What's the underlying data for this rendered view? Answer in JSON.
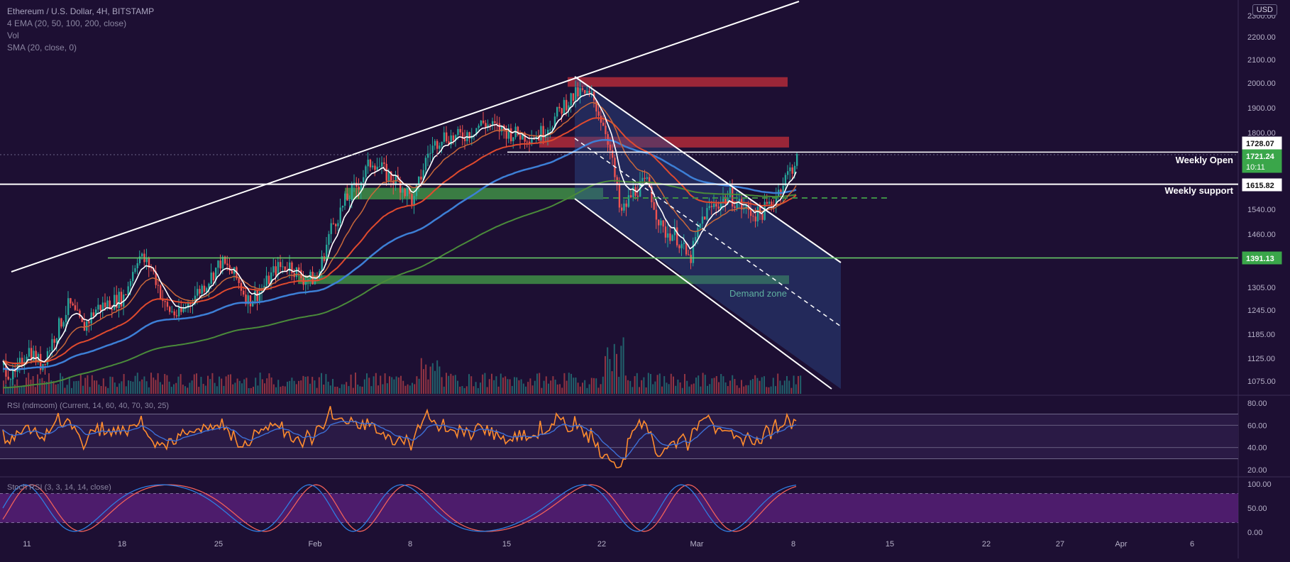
{
  "header": {
    "symbol_line": "Ethereum / U.S. Dollar, 4H, BITSTAMP",
    "ema_line": "4 EMA (20, 50, 100, 200, close)",
    "vol_line": "Vol",
    "sma_line": "SMA (20, close, 0)"
  },
  "currency_badge": "USD",
  "colors": {
    "background": "#1d0f33",
    "up_candle": "#26a69a",
    "down_candle": "#ef5350",
    "channel_line": "#ffffff",
    "ema20": "#ffffff",
    "ema50": "#e04a2e",
    "ema100": "#3d7fd6",
    "ema200": "#4a8a3a",
    "resistance_zone": "#b02a3a",
    "support_zone": "#3f8f46",
    "channel_fill": "#2d4a8a",
    "rsi_line": "#ff8c2e",
    "stoch_k": "#2f7de0",
    "stoch_d": "#f0605a",
    "stoch_band": "#5a1f7a"
  },
  "chart_data": [
    {
      "type": "candlestick",
      "title": "Ethereum / U.S. Dollar, 4H, BITSTAMP",
      "x_ticks": [
        "11",
        "18",
        "25",
        "Feb",
        "8",
        "15",
        "22",
        "Mar",
        "8",
        "15",
        "22",
        "27",
        "Apr",
        "6"
      ],
      "y_ticks": [
        1075.0,
        1125.0,
        1185.0,
        1245.0,
        1305.0,
        1390.0,
        1460.0,
        1540.0,
        1615.0,
        1700.0,
        1800.0,
        1900.0,
        2000.0,
        2100.0,
        2200.0,
        2300.0
      ],
      "price_labels": [
        {
          "value": "1728.07",
          "style": "outline"
        },
        {
          "value": "1721.24",
          "sub": "10:11",
          "style": "green"
        },
        {
          "value": "1615.82",
          "style": "outline"
        },
        {
          "value": "1391.13",
          "style": "green"
        }
      ],
      "horizontal_levels": [
        {
          "label": "Weekly Open",
          "value": 1728.07
        },
        {
          "label": "Weekly support",
          "value": 1615.82
        },
        {
          "label": "",
          "value": 1391.13
        }
      ],
      "zones": [
        {
          "label": "",
          "from": 1985,
          "to": 2025,
          "kind": "resistance"
        },
        {
          "label": "",
          "from": 1745,
          "to": 1785,
          "kind": "resistance"
        },
        {
          "label": "",
          "from": 1570,
          "to": 1605,
          "kind": "support"
        },
        {
          "label": "Demand zone",
          "from": 1315,
          "to": 1340,
          "kind": "support"
        }
      ],
      "annotations": [
        "Weekly Open",
        "Weekly support",
        "Demand zone"
      ],
      "close_path": [
        [
          "Jan 8",
          1250
        ],
        [
          "Jan 9",
          1120
        ],
        [
          "Jan 10",
          1080
        ],
        [
          "Jan 11",
          1150
        ],
        [
          "Jan 12",
          1110
        ],
        [
          "Jan 13",
          1185
        ],
        [
          "Jan 14",
          1260
        ],
        [
          "Jan 15",
          1200
        ],
        [
          "Jan 16",
          1250
        ],
        [
          "Jan 18",
          1280
        ],
        [
          "Jan 19",
          1400
        ],
        [
          "Jan 20",
          1360
        ],
        [
          "Jan 21",
          1250
        ],
        [
          "Jan 22",
          1230
        ],
        [
          "Jan 23",
          1280
        ],
        [
          "Jan 24",
          1320
        ],
        [
          "Jan 25",
          1380
        ],
        [
          "Jan 26",
          1340
        ],
        [
          "Jan 27",
          1270
        ],
        [
          "Jan 28",
          1300
        ],
        [
          "Jan 29",
          1360
        ],
        [
          "Jan 30",
          1370
        ],
        [
          "Jan 31",
          1330
        ],
        [
          "Feb 1",
          1330
        ],
        [
          "Feb 2",
          1480
        ],
        [
          "Feb 3",
          1560
        ],
        [
          "Feb 4",
          1620
        ],
        [
          "Feb 5",
          1700
        ],
        [
          "Feb 6",
          1650
        ],
        [
          "Feb 7",
          1620
        ],
        [
          "Feb 8",
          1560
        ],
        [
          "Feb 9",
          1720
        ],
        [
          "Feb 10",
          1790
        ],
        [
          "Feb 11",
          1780
        ],
        [
          "Feb 12",
          1800
        ],
        [
          "Feb 13",
          1840
        ],
        [
          "Feb 14",
          1820
        ],
        [
          "Feb 15",
          1800
        ],
        [
          "Feb 16",
          1790
        ],
        [
          "Feb 17",
          1790
        ],
        [
          "Feb 18",
          1840
        ],
        [
          "Feb 19",
          1920
        ],
        [
          "Feb 20",
          1960
        ],
        [
          "Feb 21",
          1940
        ],
        [
          "Feb 22",
          1800
        ],
        [
          "Feb 23",
          1520
        ],
        [
          "Feb 24",
          1600
        ],
        [
          "Feb 25",
          1620
        ],
        [
          "Feb 26",
          1470
        ],
        [
          "Feb 27",
          1460
        ],
        [
          "Feb 28",
          1380
        ],
        [
          "Mar 1",
          1520
        ],
        [
          "Mar 2",
          1560
        ],
        [
          "Mar 3",
          1580
        ],
        [
          "Mar 4",
          1540
        ],
        [
          "Mar 5",
          1520
        ],
        [
          "Mar 6",
          1560
        ],
        [
          "Mar 7",
          1640
        ],
        [
          "Mar 8",
          1721
        ]
      ]
    },
    {
      "type": "line",
      "title": "RSI (ndmcom) (Current, 14, 60, 40, 70, 30, 25)",
      "y_ticks": [
        20.0,
        40.0,
        60.0,
        80.0
      ],
      "bands": [
        30,
        40,
        60,
        70
      ]
    },
    {
      "type": "line",
      "title": "Stoch RSI (3, 3, 14, 14, close)",
      "y_ticks": [
        0.0,
        50.0,
        100.0
      ],
      "bands": [
        20,
        80
      ]
    }
  ]
}
